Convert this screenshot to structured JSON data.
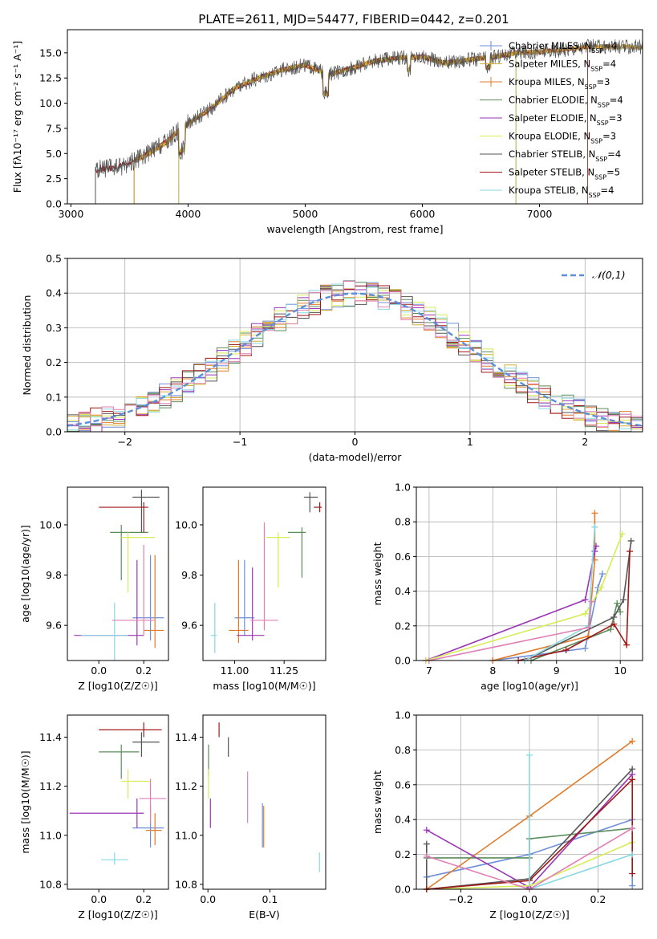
{
  "title": "PLATE=2611, MJD=54477, FIBERID=0442, z=0.201",
  "colors": {
    "Chabrier MILES": "#6f8fd8",
    "Salpeter MILES": "#d4af37",
    "Kroupa MILES": "#e07b2a",
    "Chabrier ELODIE": "#5b8c5a",
    "Salpeter ELODIE": "#9a35b5",
    "Kroupa ELODIE": "#d7ec55",
    "Chabrier STELIB": "#555555",
    "Salpeter STELIB": "#a01818",
    "Kroupa STELIB": "#88d8e0",
    "pink": "#e07fb5"
  },
  "chart_data": [
    {
      "id": "spectrum",
      "type": "line",
      "xlabel": "wavelength [Angstrom, rest frame]",
      "ylabel": "Flux [fλ10⁻¹⁷ erg cm⁻² s⁻¹ A⁻¹]",
      "xlim": [
        2970,
        7880
      ],
      "ylim": [
        0,
        17.3
      ],
      "xticks": [
        3000,
        4000,
        5000,
        6000,
        7000
      ],
      "yticks": [
        0.0,
        2.5,
        5.0,
        7.5,
        10.0,
        12.5,
        15.0
      ],
      "series_trend": {
        "x": [
          3210,
          3400,
          3600,
          3800,
          4000,
          4200,
          4400,
          4600,
          4800,
          5000,
          5200,
          5400,
          5600,
          5800,
          6000,
          6200,
          6400,
          6600,
          6800,
          7000,
          7200,
          7400
        ],
        "y": [
          3.4,
          3.6,
          4.6,
          6.0,
          8.0,
          9.5,
          11.5,
          12.5,
          13.3,
          13.8,
          12.8,
          13.5,
          14.2,
          14.5,
          14.6,
          14.0,
          14.3,
          14.6,
          15.0,
          15.1,
          15.3,
          15.6
        ]
      },
      "legend": [
        "Chabrier MILES, N_SSP=4",
        "Salpeter MILES, N_SSP=4",
        "Kroupa MILES, N_SSP=3",
        "Chabrier ELODIE, N_SSP=4",
        "Salpeter ELODIE, N_SSP=3",
        "Kroupa ELODIE, N_SSP=3",
        "Chabrier STELIB, N_SSP=4",
        "Salpeter STELIB, N_SSP=5",
        "Kroupa STELIB, N_SSP=4"
      ],
      "legend_placement": "top-right"
    },
    {
      "id": "residuals",
      "type": "histogram",
      "xlabel": "(data-model)/error",
      "ylabel": "Normed distribution",
      "xlim": [
        -2.5,
        2.5
      ],
      "ylim": [
        0,
        0.5
      ],
      "xticks": [
        -2,
        -1,
        0,
        1,
        2
      ],
      "yticks": [
        0.0,
        0.1,
        0.2,
        0.3,
        0.4,
        0.5
      ],
      "reference_curve": "𝒩(0,1)",
      "grid": true
    },
    {
      "id": "age_Z",
      "type": "errorbar",
      "xlabel": "Z [log10(Z/Z☉)]",
      "ylabel": "age  [log10(age/yr)]",
      "xlim": [
        -0.14,
        0.31
      ],
      "ylim": [
        9.46,
        10.15
      ],
      "xticks": [
        "0.0",
        "0.2"
      ],
      "yticks": [
        "9.6",
        "9.8",
        "10.0"
      ],
      "points": [
        {
          "x": 0.23,
          "xerr": [
            0.08,
            0.06
          ],
          "y": 9.63,
          "yerr": [
            0.09,
            0.25
          ],
          "c": "Chabrier MILES"
        },
        {
          "x": 0.25,
          "xerr": [
            0.05,
            0.04
          ],
          "y": 9.58,
          "yerr": [
            0.07,
            0.3
          ],
          "c": "Kroupa MILES"
        },
        {
          "x": 0.1,
          "xerr": [
            0.05,
            0.12
          ],
          "y": 9.97,
          "yerr": [
            0.19,
            0.03
          ],
          "c": "Chabrier ELODIE"
        },
        {
          "x": 0.17,
          "xerr": [
            0.28,
            0.03
          ],
          "y": 9.56,
          "yerr": [
            0.04,
            0.3
          ],
          "c": "Salpeter ELODIE"
        },
        {
          "x": 0.13,
          "xerr": [
            0.03,
            0.12
          ],
          "y": 9.95,
          "yerr": [
            0.22,
            0.02
          ],
          "c": "Kroupa ELODIE"
        },
        {
          "x": 0.19,
          "xerr": [
            0.04,
            0.08
          ],
          "y": 10.11,
          "yerr": [
            0.14,
            0.03
          ],
          "c": "Chabrier STELIB"
        },
        {
          "x": 0.2,
          "xerr": [
            0.2,
            0.02
          ],
          "y": 10.07,
          "yerr": [
            0.1,
            0.02
          ],
          "c": "Salpeter STELIB"
        },
        {
          "x": 0.07,
          "xerr": [
            0.15,
            0.06
          ],
          "y": 9.56,
          "yerr": [
            0.1,
            0.13
          ],
          "c": "Kroupa STELIB"
        },
        {
          "x": 0.2,
          "xerr": [
            0.14,
            0.05
          ],
          "y": 9.62,
          "yerr": [
            0.06,
            0.3
          ],
          "c": "pink"
        }
      ]
    },
    {
      "id": "age_mass",
      "type": "errorbar",
      "xlabel": "mass [log10(M/M☉)]",
      "ylabel": "",
      "xlim": [
        10.84,
        11.46
      ],
      "ylim": [
        9.46,
        10.15
      ],
      "xticks": [
        "11.00",
        "11.25"
      ],
      "yticks": [
        "9.6",
        "9.8",
        "10.0"
      ],
      "points": [
        {
          "x": 11.05,
          "xerr": [
            0.05,
            0.05
          ],
          "y": 9.63,
          "yerr": [
            0.07,
            0.23
          ],
          "c": "Chabrier MILES"
        },
        {
          "x": 11.02,
          "xerr": [
            0.05,
            0.05
          ],
          "y": 9.58,
          "yerr": [
            0.05,
            0.28
          ],
          "c": "Kroupa MILES"
        },
        {
          "x": 11.34,
          "xerr": [
            0.07,
            0.02
          ],
          "y": 9.97,
          "yerr": [
            0.18,
            0.02
          ],
          "c": "Chabrier ELODIE"
        },
        {
          "x": 11.09,
          "xerr": [
            0.08,
            0.06
          ],
          "y": 9.56,
          "yerr": [
            0.02,
            0.27
          ],
          "c": "Salpeter ELODIE"
        },
        {
          "x": 11.22,
          "xerr": [
            0.06,
            0.06
          ],
          "y": 9.95,
          "yerr": [
            0.2,
            0.02
          ],
          "c": "Kroupa ELODIE"
        },
        {
          "x": 11.38,
          "xerr": [
            0.03,
            0.04
          ],
          "y": 10.11,
          "yerr": [
            0.06,
            0.02
          ],
          "c": "Chabrier STELIB"
        },
        {
          "x": 11.43,
          "xerr": [
            0.03,
            0.01
          ],
          "y": 10.07,
          "yerr": [
            0.02,
            0.02
          ],
          "c": "Salpeter STELIB"
        },
        {
          "x": 10.9,
          "xerr": [
            0.02,
            0.01
          ],
          "y": 9.56,
          "yerr": [
            0.07,
            0.13
          ],
          "c": "Kroupa STELIB"
        },
        {
          "x": 11.15,
          "xerr": [
            0.07,
            0.07
          ],
          "y": 9.62,
          "yerr": [
            0.04,
            0.39
          ],
          "c": "pink"
        }
      ]
    },
    {
      "id": "weights_age",
      "type": "line",
      "xlabel": "age  [log10(age/yr)]",
      "ylabel": "mass weight",
      "xlim": [
        6.8,
        10.35
      ],
      "ylim": [
        0,
        1
      ],
      "xticks": [
        7,
        8,
        9,
        10
      ],
      "yticks": [
        0.0,
        0.2,
        0.4,
        0.6,
        0.8,
        1.0
      ],
      "grid": true,
      "series": [
        {
          "c": "Chabrier MILES",
          "x": [
            8.0,
            9.45,
            9.65,
            9.72
          ],
          "y": [
            0.0,
            0.07,
            0.42,
            0.5
          ]
        },
        {
          "c": "Kroupa MILES",
          "x": [
            8.0,
            9.5,
            9.6,
            9.6
          ],
          "y": [
            0.0,
            0.14,
            0.58,
            0.85
          ]
        },
        {
          "c": "Chabrier ELODIE",
          "x": [
            8.6,
            9.85,
            9.95,
            10.0
          ],
          "y": [
            0.0,
            0.18,
            0.33,
            0.28
          ]
        },
        {
          "c": "Salpeter ELODIE",
          "x": [
            6.95,
            9.45,
            9.6,
            9.62
          ],
          "y": [
            0.0,
            0.35,
            0.63,
            0.66
          ]
        },
        {
          "c": "Kroupa ELODIE",
          "x": [
            6.95,
            9.45,
            9.7,
            10.03
          ],
          "y": [
            0.0,
            0.27,
            0.42,
            0.73
          ]
        },
        {
          "c": "Chabrier STELIB",
          "x": [
            8.5,
            9.9,
            10.05,
            10.17
          ],
          "y": [
            0.0,
            0.25,
            0.35,
            0.69
          ]
        },
        {
          "c": "Salpeter STELIB",
          "x": [
            8.4,
            9.15,
            9.9,
            10.1,
            10.15
          ],
          "y": [
            0.0,
            0.06,
            0.21,
            0.09,
            0.63
          ]
        },
        {
          "c": "Kroupa STELIB",
          "x": [
            8.5,
            9.5,
            9.6
          ],
          "y": [
            0.0,
            0.2,
            0.77
          ]
        },
        {
          "c": "pink",
          "x": [
            7.0,
            9.5,
            9.55
          ],
          "y": [
            0.0,
            0.19,
            0.34
          ]
        }
      ]
    },
    {
      "id": "mass_Z",
      "type": "errorbar",
      "xlabel": "Z [log10(Z/Z☉)]",
      "ylabel": "mass [log10(M/M☉)]",
      "xlim": [
        -0.14,
        0.31
      ],
      "ylim": [
        10.78,
        11.49
      ],
      "xticks": [
        "0.0",
        "0.2"
      ],
      "yticks": [
        "10.8",
        "11.0",
        "11.2",
        "11.4"
      ],
      "points": [
        {
          "x": 0.23,
          "xerr": [
            0.08,
            0.06
          ],
          "y": 11.03,
          "yerr": [
            0.08,
            0.09
          ],
          "c": "Chabrier MILES"
        },
        {
          "x": 0.25,
          "xerr": [
            0.04,
            0.03
          ],
          "y": 11.02,
          "yerr": [
            0.06,
            0.07
          ],
          "c": "Kroupa MILES"
        },
        {
          "x": 0.1,
          "xerr": [
            0.1,
            0.08
          ],
          "y": 11.34,
          "yerr": [
            0.11,
            0.03
          ],
          "c": "Chabrier ELODIE"
        },
        {
          "x": 0.17,
          "xerr": [
            0.3,
            0.03
          ],
          "y": 11.09,
          "yerr": [
            0.06,
            0.06
          ],
          "c": "Salpeter ELODIE"
        },
        {
          "x": 0.13,
          "xerr": [
            0.03,
            0.1
          ],
          "y": 11.22,
          "yerr": [
            0.07,
            0.05
          ],
          "c": "Kroupa ELODIE"
        },
        {
          "x": 0.19,
          "xerr": [
            0.04,
            0.08
          ],
          "y": 11.38,
          "yerr": [
            0.06,
            0.04
          ],
          "c": "Chabrier STELIB"
        },
        {
          "x": 0.2,
          "xerr": [
            0.2,
            0.08
          ],
          "y": 11.43,
          "yerr": [
            0.03,
            0.03
          ],
          "c": "Salpeter STELIB"
        },
        {
          "x": 0.07,
          "xerr": [
            0.06,
            0.06
          ],
          "y": 10.9,
          "yerr": [
            0.02,
            0.03
          ],
          "c": "Kroupa STELIB"
        },
        {
          "x": 0.23,
          "xerr": [
            0.05,
            0.07
          ],
          "y": 11.15,
          "yerr": [
            0.1,
            0.08
          ],
          "c": "pink"
        }
      ]
    },
    {
      "id": "mass_ebv",
      "type": "errorbar",
      "xlabel": "E(B-V)",
      "ylabel": "",
      "xlim": [
        -0.008,
        0.19
      ],
      "ylim": [
        10.78,
        11.49
      ],
      "xticks": [
        "0.0",
        "0.1"
      ],
      "yticks": [
        "10.8",
        "11.0",
        "11.2",
        "11.4"
      ],
      "points": [
        {
          "x": 0.088,
          "xerr": [
            0,
            0
          ],
          "y": 11.03,
          "yerr": [
            0.08,
            0.1
          ],
          "c": "Chabrier MILES"
        },
        {
          "x": 0.09,
          "xerr": [
            0,
            0
          ],
          "y": 11.02,
          "yerr": [
            0.07,
            0.1
          ],
          "c": "Kroupa MILES"
        },
        {
          "x": 0.001,
          "xerr": [
            0,
            0
          ],
          "y": 11.34,
          "yerr": [
            0.1,
            0.03
          ],
          "c": "Chabrier ELODIE"
        },
        {
          "x": 0.004,
          "xerr": [
            0,
            0
          ],
          "y": 11.09,
          "yerr": [
            0.06,
            0.06
          ],
          "c": "Salpeter ELODIE"
        },
        {
          "x": 0.001,
          "xerr": [
            0,
            0
          ],
          "y": 11.22,
          "yerr": [
            0.07,
            0.05
          ],
          "c": "Kroupa ELODIE"
        },
        {
          "x": 0.033,
          "xerr": [
            0,
            0
          ],
          "y": 11.38,
          "yerr": [
            0.06,
            0.02
          ],
          "c": "Chabrier STELIB"
        },
        {
          "x": 0.018,
          "xerr": [
            0,
            0
          ],
          "y": 11.43,
          "yerr": [
            0.03,
            0.03
          ],
          "c": "Salpeter STELIB"
        },
        {
          "x": 0.18,
          "xerr": [
            0,
            0
          ],
          "y": 10.89,
          "yerr": [
            0.04,
            0.04
          ],
          "c": "Kroupa STELIB"
        },
        {
          "x": 0.064,
          "xerr": [
            0,
            0
          ],
          "y": 11.15,
          "yerr": [
            0.1,
            0.11
          ],
          "c": "pink"
        }
      ]
    },
    {
      "id": "weights_Z",
      "type": "line",
      "xlabel": "Z [log10(Z/Z☉)]",
      "ylabel": "mass weight",
      "xlim": [
        -0.33,
        0.33
      ],
      "ylim": [
        0,
        1
      ],
      "xticks": [
        "−0.2",
        "0.0",
        "0.2"
      ],
      "xtick_values": [
        -0.2,
        0.0,
        0.2
      ],
      "yticks": [
        0.0,
        0.2,
        0.4,
        0.6,
        0.8,
        1.0
      ],
      "grid": true,
      "series": [
        {
          "c": "Chabrier MILES",
          "x": [
            -0.3,
            0.0,
            0.3,
            0.3
          ],
          "y": [
            0.07,
            0.2,
            0.4,
            0.02
          ]
        },
        {
          "c": "Kroupa MILES",
          "x": [
            -0.3,
            0.0,
            0.3
          ],
          "y": [
            0.0,
            0.42,
            0.85
          ]
        },
        {
          "c": "Chabrier ELODIE",
          "x": [
            -0.3,
            0.0,
            0.0,
            0.3
          ],
          "y": [
            0.18,
            0.18,
            0.29,
            0.35
          ]
        },
        {
          "c": "Salpeter ELODIE",
          "x": [
            -0.3,
            0.0,
            0.3
          ],
          "y": [
            0.34,
            0.01,
            0.66
          ]
        },
        {
          "c": "Kroupa ELODIE",
          "x": [
            -0.3,
            0.0,
            0.3
          ],
          "y": [
            0.0,
            0.02,
            0.27
          ]
        },
        {
          "c": "Chabrier STELIB",
          "x": [
            -0.3,
            -0.3,
            0.0,
            0.3
          ],
          "y": [
            0.26,
            0.0,
            0.06,
            0.69
          ]
        },
        {
          "c": "Salpeter STELIB",
          "x": [
            -0.3,
            0.0,
            0.3,
            0.3
          ],
          "y": [
            0.0,
            0.05,
            0.63,
            0.09
          ]
        },
        {
          "c": "Kroupa STELIB",
          "x": [
            0.0,
            0.0,
            0.3
          ],
          "y": [
            0.77,
            0.0,
            0.2
          ]
        },
        {
          "c": "pink",
          "x": [
            -0.3,
            0.0,
            0.3
          ],
          "y": [
            0.19,
            0.0,
            0.35
          ]
        }
      ]
    }
  ]
}
